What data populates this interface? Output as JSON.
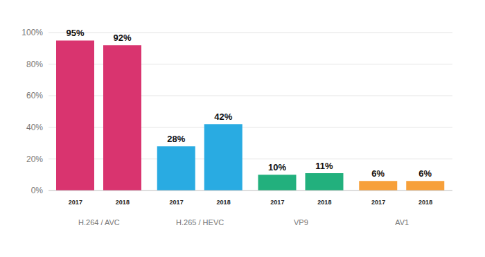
{
  "chart_data": {
    "type": "bar",
    "categories": [
      "H.264 / AVC",
      "H.265 / HEVC",
      "VP9",
      "AV1"
    ],
    "series": [
      {
        "name": "2017",
        "values": [
          95,
          28,
          10,
          6
        ],
        "value_labels": [
          "95%",
          "28%",
          "10%",
          "6%"
        ]
      },
      {
        "name": "2018",
        "values": [
          92,
          42,
          11,
          6
        ],
        "value_labels": [
          "92%",
          "42%",
          "11%",
          "6%"
        ]
      }
    ],
    "colors": [
      "#d9346f",
      "#29abe2",
      "#22b07d",
      "#f7a03a"
    ],
    "ylim": [
      0,
      100
    ],
    "yticks": [
      {
        "value": 0,
        "label": "0%"
      },
      {
        "value": 20,
        "label": "20%"
      },
      {
        "value": 40,
        "label": "40%"
      },
      {
        "value": 60,
        "label": "60%"
      },
      {
        "value": 80,
        "label": "80%"
      },
      {
        "value": 100,
        "label": "100%"
      }
    ],
    "grid": true,
    "data_labels": true
  }
}
